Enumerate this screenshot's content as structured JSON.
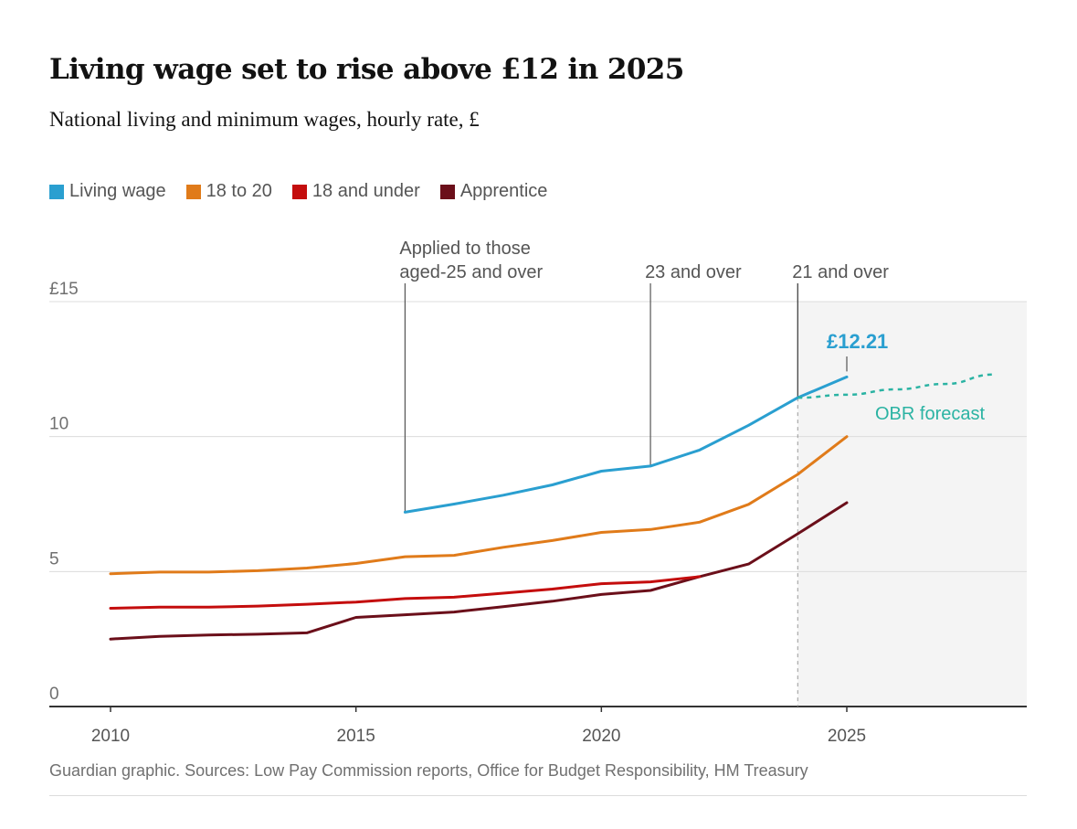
{
  "header": {
    "title": "Living wage set to rise above £12 in 2025",
    "subtitle": "National living and minimum wages, hourly rate, £"
  },
  "footer": {
    "source": "Guardian graphic. Sources: Low Pay Commission reports, Office for Budget Responsibility, HM Treasury"
  },
  "chart_data": {
    "type": "line",
    "title": "Living wage set to rise above £12 in 2025",
    "subtitle": "National living and minimum wages, hourly rate, £",
    "xlabel": "",
    "ylabel": "",
    "xlim": [
      2009,
      2029
    ],
    "ylim": [
      0,
      15
    ],
    "x_ticks": [
      2010,
      2015,
      2020,
      2025
    ],
    "y_ticks": [
      {
        "value": 15,
        "label": "£15"
      },
      {
        "value": 10,
        "label": "10"
      },
      {
        "value": 5,
        "label": "5"
      },
      {
        "value": 0,
        "label": "0"
      }
    ],
    "grid": true,
    "legend_position": "top-left",
    "series": [
      {
        "name": "Living wage",
        "color": "#2a9fd0",
        "x": [
          2016,
          2017,
          2018,
          2019,
          2020,
          2021,
          2022,
          2023,
          2024,
          2025
        ],
        "values": [
          7.2,
          7.5,
          7.83,
          8.21,
          8.72,
          8.91,
          9.5,
          10.42,
          11.44,
          12.21
        ]
      },
      {
        "name": "18 to 20",
        "color": "#e07b1a",
        "x": [
          2010,
          2011,
          2012,
          2013,
          2014,
          2015,
          2016,
          2017,
          2018,
          2019,
          2020,
          2021,
          2022,
          2023,
          2024,
          2025
        ],
        "values": [
          4.92,
          4.98,
          4.98,
          5.03,
          5.13,
          5.3,
          5.55,
          5.6,
          5.9,
          6.15,
          6.45,
          6.56,
          6.83,
          7.49,
          8.6,
          10.0
        ]
      },
      {
        "name": "18 and under",
        "color": "#c40d0d",
        "x": [
          2010,
          2011,
          2012,
          2013,
          2014,
          2015,
          2016,
          2017,
          2018,
          2019,
          2020,
          2021,
          2022
        ],
        "values": [
          3.64,
          3.68,
          3.68,
          3.72,
          3.79,
          3.87,
          4.0,
          4.05,
          4.2,
          4.35,
          4.55,
          4.62,
          4.81
        ]
      },
      {
        "name": "Apprentice",
        "color": "#6b0f1a",
        "x": [
          2010,
          2011,
          2012,
          2013,
          2014,
          2015,
          2016,
          2017,
          2018,
          2019,
          2020,
          2021,
          2022,
          2023,
          2024,
          2025
        ],
        "values": [
          2.5,
          2.6,
          2.65,
          2.68,
          2.73,
          3.3,
          3.4,
          3.5,
          3.7,
          3.9,
          4.15,
          4.3,
          4.81,
          5.28,
          6.4,
          7.55
        ]
      }
    ],
    "forecast": {
      "label": "OBR forecast",
      "color": "#2bb3a3",
      "x": [
        2024,
        2025,
        2026,
        2027,
        2028
      ],
      "values": [
        11.44,
        11.55,
        11.75,
        11.95,
        12.3
      ]
    },
    "annotations": [
      {
        "text_lines": [
          "Applied to those",
          "aged-25 and over"
        ],
        "x": 2016,
        "y": 7.2
      },
      {
        "text_lines": [
          "23 and over"
        ],
        "x": 2021,
        "y": 8.91
      },
      {
        "text_lines": [
          "21 and over"
        ],
        "x": 2024,
        "y": 11.44
      }
    ],
    "value_label": {
      "text": "£12.21",
      "x": 2025,
      "y": 12.21
    },
    "shaded_forecast_region": {
      "x_from": 2024,
      "x_to": 2029
    }
  }
}
